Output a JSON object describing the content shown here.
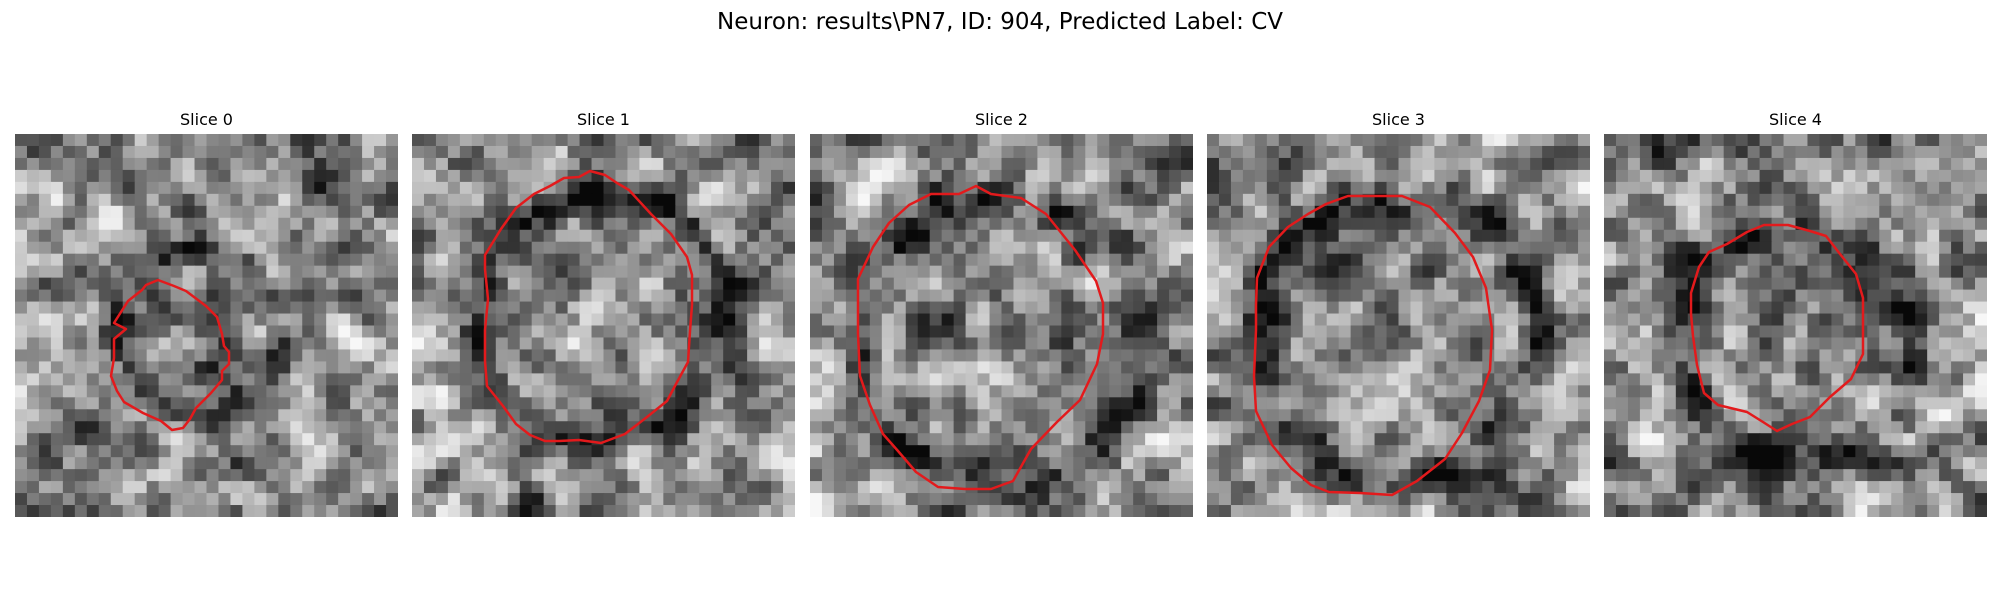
{
  "figure": {
    "suptitle": "Neuron: results\\PN7, ID: 904, Predicted Label: CV",
    "contour_color": "#e31a1c",
    "colormap": "grayscale",
    "slices": [
      {
        "title": "Slice 0",
        "seed": 11,
        "ring_center": [
          0.48,
          0.51
        ],
        "ring_radius": [
          0.38,
          0.47
        ],
        "contrast": 0.55,
        "core_dark": 0.35
      },
      {
        "title": "Slice 1",
        "seed": 23,
        "ring_center": [
          0.5,
          0.48
        ],
        "ring_radius": [
          0.61,
          0.69
        ],
        "contrast": 0.65,
        "core_dark": 0.0
      },
      {
        "title": "Slice 2",
        "seed": 37,
        "ring_center": [
          0.5,
          0.55
        ],
        "ring_radius": [
          0.68,
          0.8
        ],
        "contrast": 0.6,
        "core_dark": 0.0
      },
      {
        "title": "Slice 3",
        "seed": 51,
        "ring_center": [
          0.5,
          0.53
        ],
        "ring_radius": [
          0.66,
          0.78
        ],
        "contrast": 0.6,
        "core_dark": 0.0
      },
      {
        "title": "Slice 4",
        "seed": 67,
        "ring_center": [
          0.5,
          0.55
        ],
        "ring_radius": [
          0.55,
          0.65
        ],
        "contrast": 0.65,
        "core_dark": 0.0
      }
    ]
  }
}
